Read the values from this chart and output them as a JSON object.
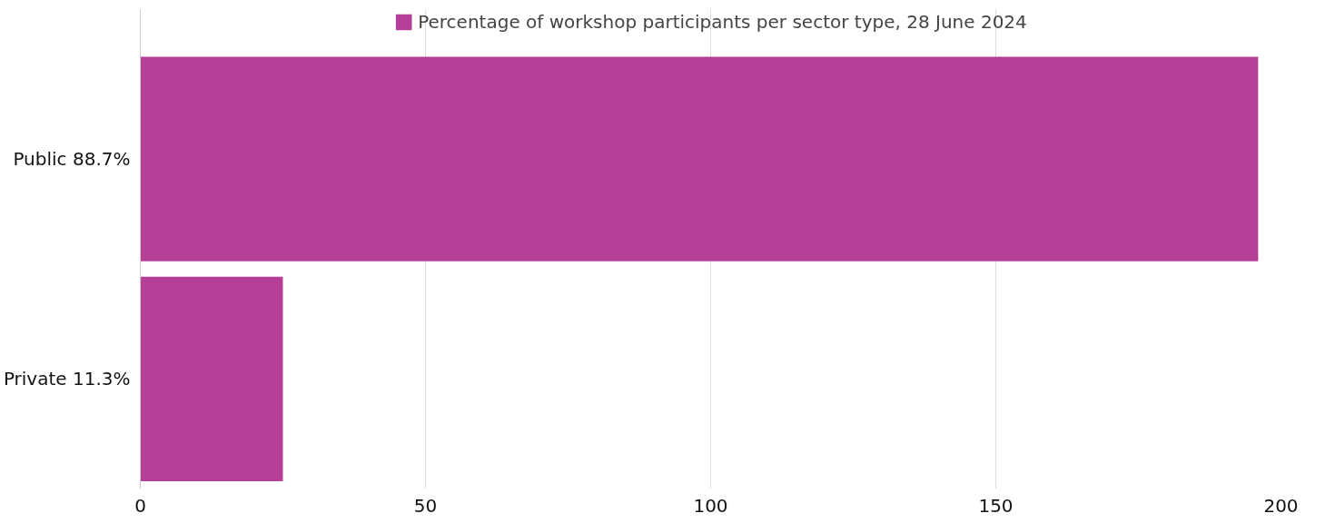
{
  "chart_data": {
    "type": "bar",
    "orientation": "horizontal",
    "categories": [
      "Public 88.7%",
      "Private 11.3%"
    ],
    "series": [
      {
        "name": "Percentage of workshop participants per sector type, 28 June 2024",
        "color": "#b53f96",
        "values": [
          196,
          25
        ]
      }
    ],
    "xlim": [
      0,
      200
    ],
    "xticks": [
      0,
      50,
      100,
      150,
      200
    ],
    "grid": "x",
    "legend": "top"
  }
}
